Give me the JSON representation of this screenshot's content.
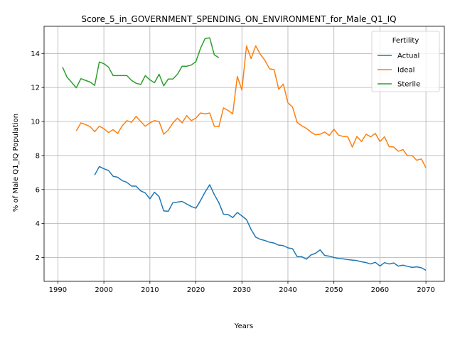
{
  "chart_data": {
    "type": "line",
    "title": "Score_5_in_GOVERNMENT_SPENDING_ON_ENVIRONMENT_for_Male_Q1_IQ",
    "xlabel": "Years",
    "ylabel": "% of Male Q1_IQ Population",
    "xlim": [
      1987.0,
      2074.0
    ],
    "ylim": [
      0.6,
      15.6
    ],
    "x_ticks": [
      1990,
      2000,
      2010,
      2020,
      2030,
      2040,
      2050,
      2060,
      2070
    ],
    "y_ticks": [
      2,
      4,
      6,
      8,
      10,
      12,
      14
    ],
    "grid": true,
    "legend": {
      "title": "Fertility",
      "placement": "top-right"
    },
    "series": [
      {
        "name": "Actual",
        "color": "#1f77b4",
        "x": [
          1998,
          1999,
          2000,
          2001,
          2002,
          2003,
          2004,
          2005,
          2006,
          2007,
          2008,
          2009,
          2010,
          2011,
          2012,
          2013,
          2014,
          2015,
          2016,
          2017,
          2018,
          2019,
          2020,
          2021,
          2022,
          2023,
          2024,
          2025,
          2026,
          2027,
          2028,
          2029,
          2030,
          2031,
          2032,
          2033,
          2034,
          2035,
          2036,
          2037,
          2038,
          2039,
          2040,
          2041,
          2042,
          2043,
          2044,
          2045,
          2046,
          2047,
          2048,
          2049,
          2050,
          2051,
          2052,
          2053,
          2054,
          2055,
          2056,
          2057,
          2058,
          2059,
          2060,
          2061,
          2062,
          2063,
          2064,
          2065,
          2066,
          2067,
          2068,
          2069,
          2070
        ],
        "y": [
          6.85,
          7.35,
          7.22,
          7.12,
          6.78,
          6.72,
          6.52,
          6.42,
          6.2,
          6.2,
          5.92,
          5.8,
          5.45,
          5.84,
          5.58,
          4.74,
          4.72,
          5.23,
          5.26,
          5.3,
          5.15,
          5.0,
          4.9,
          5.35,
          5.85,
          6.28,
          5.7,
          5.22,
          4.55,
          4.53,
          4.35,
          4.65,
          4.45,
          4.23,
          3.65,
          3.2,
          3.07,
          3.0,
          2.9,
          2.85,
          2.73,
          2.7,
          2.57,
          2.52,
          2.05,
          2.05,
          1.9,
          2.15,
          2.25,
          2.45,
          2.12,
          2.08,
          2.0,
          1.95,
          1.92,
          1.88,
          1.85,
          1.82,
          1.75,
          1.7,
          1.62,
          1.72,
          1.5,
          1.7,
          1.62,
          1.68,
          1.5,
          1.55,
          1.48,
          1.42,
          1.45,
          1.4,
          1.25
        ]
      },
      {
        "name": "Ideal",
        "color": "#ff7f0e",
        "x": [
          1994,
          1995,
          1996,
          1997,
          1998,
          1999,
          2000,
          2001,
          2002,
          2003,
          2004,
          2005,
          2006,
          2007,
          2008,
          2009,
          2010,
          2011,
          2012,
          2013,
          2014,
          2015,
          2016,
          2017,
          2018,
          2019,
          2020,
          2021,
          2022,
          2023,
          2024,
          2025,
          2026,
          2027,
          2028,
          2029,
          2030,
          2031,
          2032,
          2033,
          2034,
          2035,
          2036,
          2037,
          2038,
          2039,
          2040,
          2041,
          2042,
          2043,
          2044,
          2045,
          2046,
          2047,
          2048,
          2049,
          2050,
          2051,
          2052,
          2053,
          2054,
          2055,
          2056,
          2057,
          2058,
          2059,
          2060,
          2061,
          2062,
          2063,
          2064,
          2065,
          2066,
          2067,
          2068,
          2069,
          2070
        ],
        "y": [
          9.45,
          9.92,
          9.82,
          9.7,
          9.4,
          9.72,
          9.58,
          9.35,
          9.52,
          9.3,
          9.75,
          10.05,
          9.95,
          10.3,
          10.0,
          9.72,
          9.92,
          10.05,
          10.0,
          9.25,
          9.5,
          9.92,
          10.2,
          9.92,
          10.35,
          10.05,
          10.2,
          10.5,
          10.45,
          10.5,
          9.72,
          9.7,
          10.8,
          10.65,
          10.45,
          12.65,
          11.85,
          14.45,
          13.7,
          14.45,
          13.95,
          13.6,
          13.1,
          13.05,
          11.9,
          12.2,
          11.1,
          10.85,
          9.95,
          9.75,
          9.6,
          9.38,
          9.22,
          9.25,
          9.38,
          9.18,
          9.55,
          9.2,
          9.12,
          9.1,
          8.5,
          9.12,
          8.82,
          9.25,
          9.1,
          9.3,
          8.82,
          9.1,
          8.52,
          8.5,
          8.25,
          8.35,
          7.98,
          8.0,
          7.72,
          7.8,
          7.28
        ]
      },
      {
        "name": "Sterile",
        "color": "#2ca02c",
        "x": [
          1991,
          1992,
          1993,
          1994,
          1995,
          1996,
          1997,
          1998,
          1999,
          2000,
          2001,
          2002,
          2003,
          2004,
          2005,
          2006,
          2007,
          2008,
          2009,
          2010,
          2011,
          2012,
          2013,
          2014,
          2015,
          2016,
          2017,
          2018,
          2019,
          2020,
          2021,
          2022,
          2023,
          2024,
          2025
        ],
        "y": [
          13.2,
          12.6,
          12.3,
          11.98,
          12.52,
          12.42,
          12.32,
          12.12,
          13.5,
          13.4,
          13.2,
          12.7,
          12.7,
          12.7,
          12.7,
          12.42,
          12.25,
          12.18,
          12.7,
          12.45,
          12.28,
          12.78,
          12.1,
          12.5,
          12.5,
          12.78,
          13.25,
          13.25,
          13.32,
          13.52,
          14.3,
          14.88,
          14.92,
          13.92,
          13.75
        ]
      }
    ]
  }
}
